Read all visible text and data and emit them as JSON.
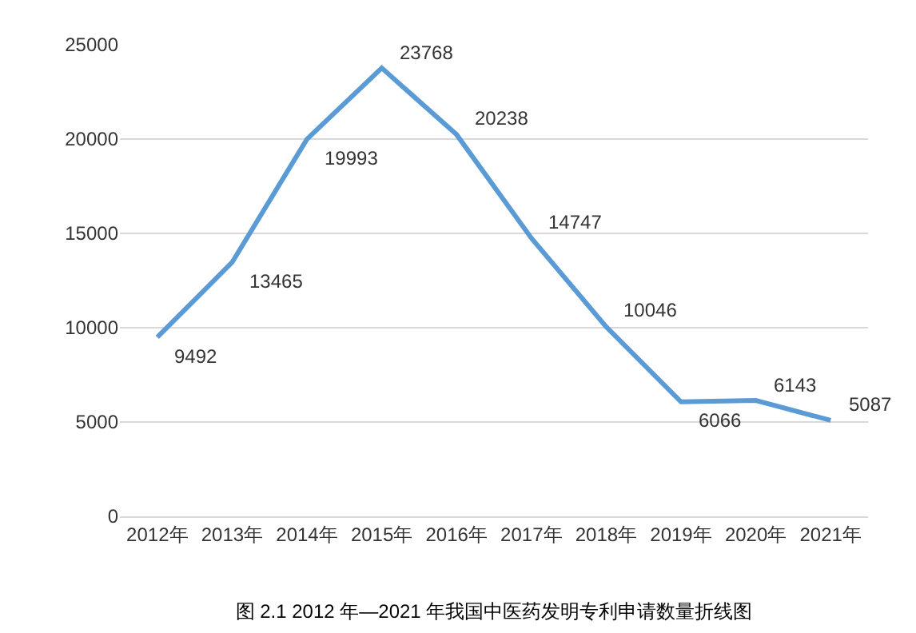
{
  "chart_data": {
    "type": "line",
    "title": "图 2.1 2012 年—2021 年我国中医药发明专利申请数量折线图",
    "categories": [
      "2012年",
      "2013年",
      "2014年",
      "2015年",
      "2016年",
      "2017年",
      "2018年",
      "2019年",
      "2020年",
      "2021年"
    ],
    "series": [
      {
        "color": "#5b9bd5",
        "values": [
          9492,
          13465,
          19993,
          23768,
          20238,
          14747,
          10046,
          6066,
          6143,
          5087
        ]
      }
    ],
    "ylim": [
      0,
      25000
    ],
    "yticks": [
      0,
      5000,
      10000,
      15000,
      20000,
      25000
    ],
    "grid": "y",
    "data_labels": true,
    "marker": "none",
    "line_style": "solid"
  }
}
